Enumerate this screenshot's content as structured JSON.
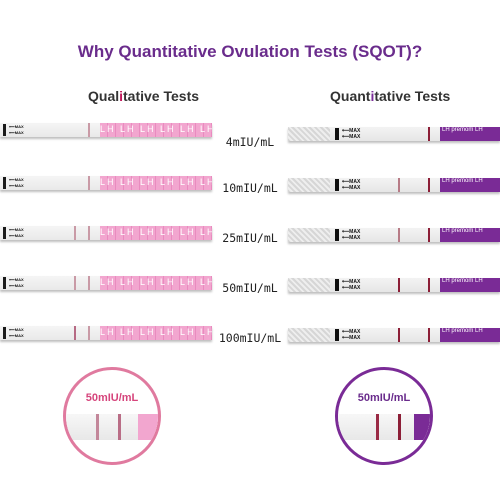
{
  "title": "Why Quantitative Ovulation Tests (SQOT)?",
  "headers": {
    "qual_pre": "Qual",
    "qual_hl": "i",
    "qual_post": "tative Tests",
    "quant_pre": "Quant",
    "quant_hl": "i",
    "quant_post": "tative Tests"
  },
  "rows": [
    {
      "conc": "4mIU/mL"
    },
    {
      "conc": "10mIU/mL"
    },
    {
      "conc": "25mIU/mL"
    },
    {
      "conc": "50mIU/mL"
    },
    {
      "conc": "100mIU/mL"
    }
  ],
  "strip_text": {
    "max": "MAX",
    "lh_pattern": "LH LH LH LH LH LH LH LH LH",
    "premom": "LH premom LH"
  },
  "zoom": {
    "qual_label": "50mIU/mL",
    "quant_label": "50mIU/mL"
  },
  "colors": {
    "title": "#6a2c8c",
    "qual_accent": "#f2a6cf",
    "quant_accent": "#7a2b96"
  }
}
